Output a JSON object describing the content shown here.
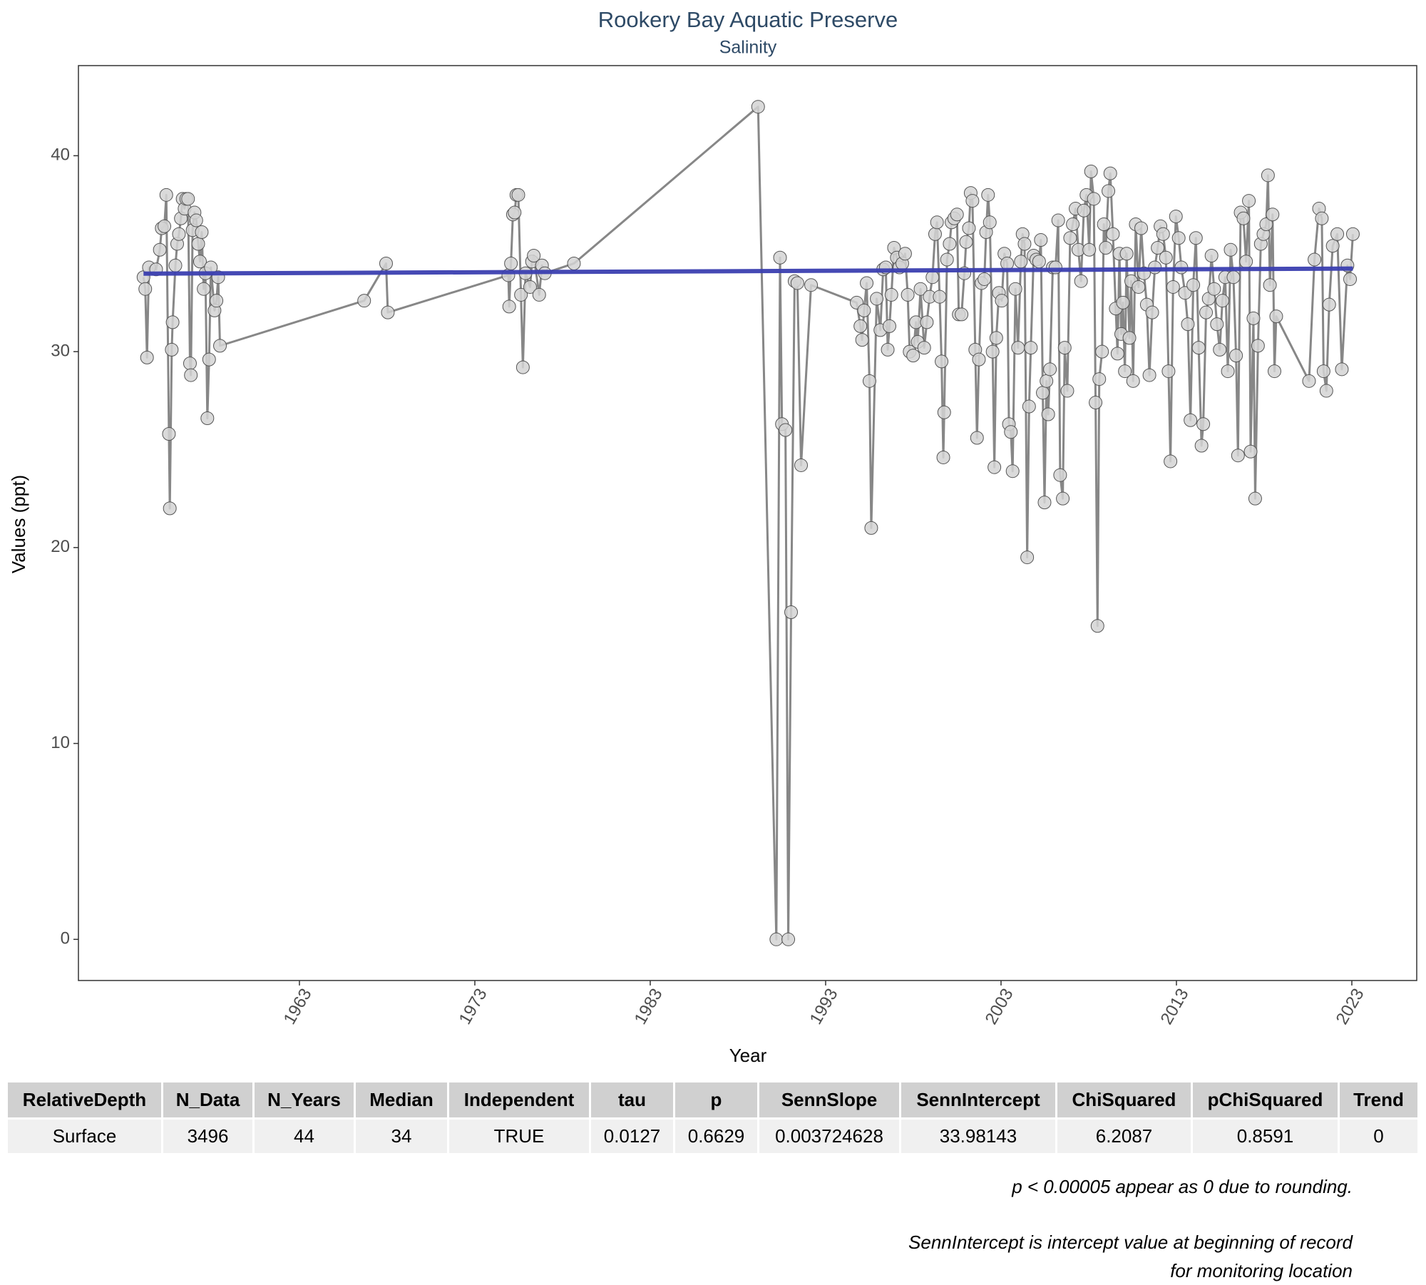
{
  "chart_data": {
    "type": "line",
    "title": "Rookery Bay Aquatic Preserve",
    "subtitle": "Salinity",
    "x_label": "Year",
    "y_label": "Values (ppt)",
    "xlim": [
      1950.4,
      2026.7
    ],
    "xticks": [
      1963,
      1973,
      1983,
      1993,
      2003,
      2013,
      2023
    ],
    "ylim": [
      -2.1,
      44.6
    ],
    "yticks": [
      0,
      10,
      20,
      30,
      40
    ],
    "grid": false,
    "series": [
      {
        "color": "#878787",
        "marker_color": "#d4d4d4",
        "x": [
          1954.11,
          1954.21,
          1954.31,
          1954.42,
          1954.83,
          1955.04,
          1955.15,
          1955.3,
          1955.41,
          1955.56,
          1955.61,
          1955.72,
          1955.77,
          1955.93,
          1956.03,
          1956.13,
          1956.24,
          1956.34,
          1956.45,
          1956.55,
          1956.65,
          1956.76,
          1956.81,
          1956.91,
          1957.02,
          1957.12,
          1957.23,
          1957.33,
          1957.43,
          1957.54,
          1957.64,
          1957.75,
          1957.85,
          1957.95,
          1958.16,
          1958.27,
          1958.37,
          1958.47,
          1966.69,
          1967.94,
          1968.04,
          1974.91,
          1974.96,
          1975.06,
          1975.17,
          1975.27,
          1975.37,
          1975.48,
          1975.63,
          1975.74,
          1975.89,
          1976.15,
          1976.26,
          1976.36,
          1976.67,
          1976.83,
          1976.99,
          1978.65,
          1989.15,
          1990.19,
          1990.4,
          1990.51,
          1990.71,
          1990.87,
          1991.03,
          1991.23,
          1991.39,
          1991.6,
          1992.17,
          1994.77,
          1994.98,
          1995.08,
          1995.19,
          1995.34,
          1995.5,
          1995.6,
          1995.91,
          1996.12,
          1996.28,
          1996.43,
          1996.54,
          1996.64,
          1996.75,
          1996.9,
          1997.06,
          1997.21,
          1997.37,
          1997.53,
          1997.68,
          1997.79,
          1997.99,
          1998.15,
          1998.25,
          1998.41,
          1998.62,
          1998.77,
          1998.93,
          1999.09,
          1999.24,
          1999.35,
          1999.5,
          1999.61,
          1999.71,
          1999.76,
          1999.92,
          2000.07,
          2000.18,
          2000.33,
          2000.49,
          2000.59,
          2000.75,
          2000.91,
          2001.01,
          2001.17,
          2001.27,
          2001.37,
          2001.53,
          2001.63,
          2001.74,
          2001.89,
          2002.05,
          2002.15,
          2002.26,
          2002.36,
          2002.52,
          2002.62,
          2002.73,
          2002.88,
          2003.04,
          2003.19,
          2003.35,
          2003.45,
          2003.56,
          2003.66,
          2003.82,
          2003.97,
          2004.13,
          2004.23,
          2004.34,
          2004.49,
          2004.6,
          2004.7,
          2004.86,
          2005.01,
          2005.17,
          2005.27,
          2005.38,
          2005.48,
          2005.59,
          2005.69,
          2005.79,
          2005.95,
          2006.11,
          2006.26,
          2006.37,
          2006.52,
          2006.63,
          2006.78,
          2006.94,
          2007.09,
          2007.25,
          2007.41,
          2007.56,
          2007.72,
          2007.87,
          2008.03,
          2008.13,
          2008.29,
          2008.39,
          2008.5,
          2008.6,
          2008.76,
          2008.86,
          2008.97,
          2009.12,
          2009.23,
          2009.38,
          2009.54,
          2009.64,
          2009.75,
          2009.85,
          2009.95,
          2010.06,
          2010.16,
          2010.32,
          2010.42,
          2010.53,
          2010.68,
          2010.84,
          2010.99,
          2011.15,
          2011.31,
          2011.46,
          2011.62,
          2011.77,
          2011.93,
          2012.09,
          2012.24,
          2012.4,
          2012.55,
          2012.66,
          2012.81,
          2012.97,
          2013.13,
          2013.28,
          2013.49,
          2013.65,
          2013.8,
          2013.96,
          2014.11,
          2014.27,
          2014.43,
          2014.53,
          2014.69,
          2014.84,
          2015.0,
          2015.15,
          2015.31,
          2015.47,
          2015.62,
          2015.78,
          2015.93,
          2016.09,
          2016.25,
          2016.4,
          2016.51,
          2016.66,
          2016.82,
          2016.97,
          2017.13,
          2017.23,
          2017.39,
          2017.49,
          2017.65,
          2017.81,
          2017.96,
          2018.12,
          2018.22,
          2018.33,
          2018.48,
          2018.59,
          2018.69,
          2020.56,
          2020.87,
          2021.13,
          2021.29,
          2021.39,
          2021.55,
          2021.71,
          2021.91,
          2022.17,
          2022.43,
          2022.75,
          2022.9,
          2023.06
        ],
        "values": [
          33.8,
          33.2,
          29.7,
          34.3,
          34.2,
          35.2,
          36.3,
          36.4,
          38.0,
          25.8,
          22.0,
          30.1,
          31.5,
          34.4,
          35.5,
          36.0,
          36.8,
          37.8,
          37.3,
          37.8,
          37.8,
          29.4,
          28.8,
          36.2,
          37.1,
          36.7,
          35.5,
          34.6,
          36.1,
          33.2,
          34.0,
          26.6,
          29.6,
          34.3,
          32.1,
          32.6,
          33.8,
          30.3,
          32.6,
          34.5,
          32.0,
          33.9,
          32.3,
          34.5,
          37.0,
          37.1,
          38.0,
          38.0,
          32.9,
          29.2,
          34.0,
          33.3,
          34.6,
          34.9,
          32.9,
          34.4,
          34.0,
          34.5,
          42.5,
          0,
          34.8,
          26.3,
          26.0,
          0,
          16.7,
          33.6,
          33.5,
          24.2,
          33.4,
          32.5,
          31.3,
          30.6,
          32.1,
          33.5,
          28.5,
          21.0,
          32.7,
          31.1,
          34.2,
          34.3,
          30.1,
          31.3,
          32.9,
          35.3,
          34.8,
          34.3,
          34.5,
          35.0,
          32.9,
          30.0,
          29.8,
          31.5,
          30.5,
          33.2,
          30.2,
          31.5,
          32.8,
          33.8,
          36.0,
          36.6,
          32.8,
          29.5,
          24.6,
          26.9,
          34.7,
          35.5,
          36.6,
          36.8,
          37.0,
          31.9,
          31.9,
          34.0,
          35.6,
          36.3,
          38.1,
          37.7,
          30.1,
          25.6,
          29.6,
          33.5,
          33.7,
          36.1,
          38.0,
          36.6,
          30.0,
          24.1,
          30.7,
          33.0,
          32.6,
          35.0,
          34.5,
          26.3,
          25.9,
          23.9,
          33.2,
          30.2,
          34.6,
          36.0,
          35.5,
          19.5,
          27.2,
          30.2,
          34.9,
          34.7,
          34.6,
          35.7,
          27.9,
          22.3,
          28.5,
          26.8,
          29.1,
          34.3,
          34.3,
          36.7,
          23.7,
          22.5,
          30.2,
          28.0,
          35.8,
          36.5,
          37.3,
          35.2,
          33.6,
          37.2,
          38.0,
          35.2,
          39.2,
          37.8,
          27.4,
          16.0,
          28.6,
          30.0,
          36.5,
          35.3,
          38.2,
          39.1,
          36.0,
          32.2,
          29.9,
          35.0,
          30.9,
          32.5,
          29.0,
          35.0,
          30.7,
          33.6,
          28.5,
          36.5,
          33.3,
          36.3,
          34.0,
          32.4,
          28.8,
          32.0,
          34.3,
          35.3,
          36.4,
          36.0,
          34.8,
          29.0,
          24.4,
          33.3,
          36.9,
          35.8,
          34.3,
          33.0,
          31.4,
          26.5,
          33.4,
          35.8,
          30.2,
          25.2,
          26.3,
          32.0,
          32.7,
          34.9,
          33.2,
          31.4,
          30.1,
          32.6,
          33.8,
          29.0,
          35.2,
          33.8,
          29.8,
          24.7,
          37.1,
          36.8,
          34.6,
          37.7,
          24.9,
          31.7,
          22.5,
          30.3,
          35.5,
          36.0,
          36.5,
          39.0,
          33.4,
          37.0,
          29.0,
          31.8,
          28.5,
          34.7,
          37.3,
          36.8,
          29.0,
          28.0,
          32.4,
          35.4,
          36.0,
          29.1,
          34.4,
          33.7,
          36.0
        ]
      },
      {
        "color": "#3b3fb0",
        "x": [
          1954.11,
          2023.06
        ],
        "values": [
          33.98,
          34.24
        ]
      }
    ]
  },
  "table": {
    "columns": [
      "RelativeDepth",
      "N_Data",
      "N_Years",
      "Median",
      "Independent",
      "tau",
      "p",
      "SennSlope",
      "SennIntercept",
      "ChiSquared",
      "pChiSquared",
      "Trend"
    ],
    "rows": [
      [
        "Surface",
        3496,
        44,
        34,
        "TRUE",
        0.0127,
        0.6629,
        0.003724628,
        33.98143,
        6.2087,
        0.8591,
        0
      ]
    ]
  },
  "notes": [
    "p < 0.00005 appear as 0 due to rounding.",
    "SennIntercept is intercept value at beginning of record for monitoring location"
  ]
}
